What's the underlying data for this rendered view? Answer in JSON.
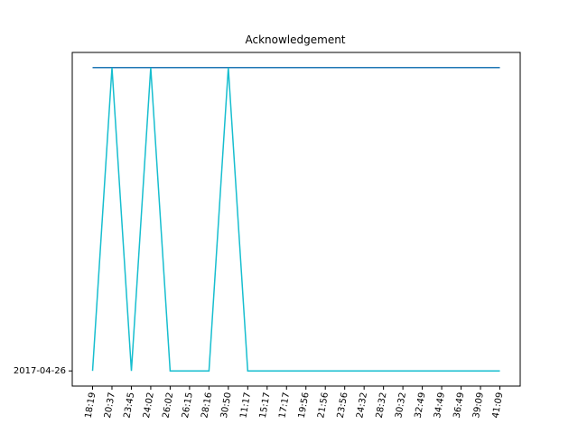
{
  "chart_data": {
    "type": "line",
    "title": "Acknowledgement",
    "xlabel": "",
    "ylabel": "",
    "categories": [
      "18:19",
      "20:37",
      "23:45",
      "24:02",
      "26:02",
      "26:15",
      "28:16",
      "30:50",
      "11:17",
      "15:17",
      "17:17",
      "19:56",
      "21:56",
      "23:56",
      "24:32",
      "28:32",
      "30:32",
      "32:49",
      "34:49",
      "36:49",
      "39:09",
      "41:09"
    ],
    "y_ticks": [
      {
        "label": "2017-04-26",
        "value": 0
      }
    ],
    "y_range": [
      -0.05,
      1.05
    ],
    "series": [
      {
        "color": "#1f77b4",
        "values": [
          1,
          1,
          1,
          1,
          1,
          1,
          1,
          1,
          1,
          1,
          1,
          1,
          1,
          1,
          1,
          1,
          1,
          1,
          1,
          1,
          1,
          1
        ]
      },
      {
        "color": "#17becf",
        "values": [
          0,
          1,
          0,
          1,
          0,
          0,
          0,
          1,
          0,
          0,
          0,
          0,
          0,
          0,
          0,
          0,
          0,
          0,
          0,
          0,
          0,
          0
        ]
      }
    ],
    "grid": false,
    "legend": "none"
  }
}
